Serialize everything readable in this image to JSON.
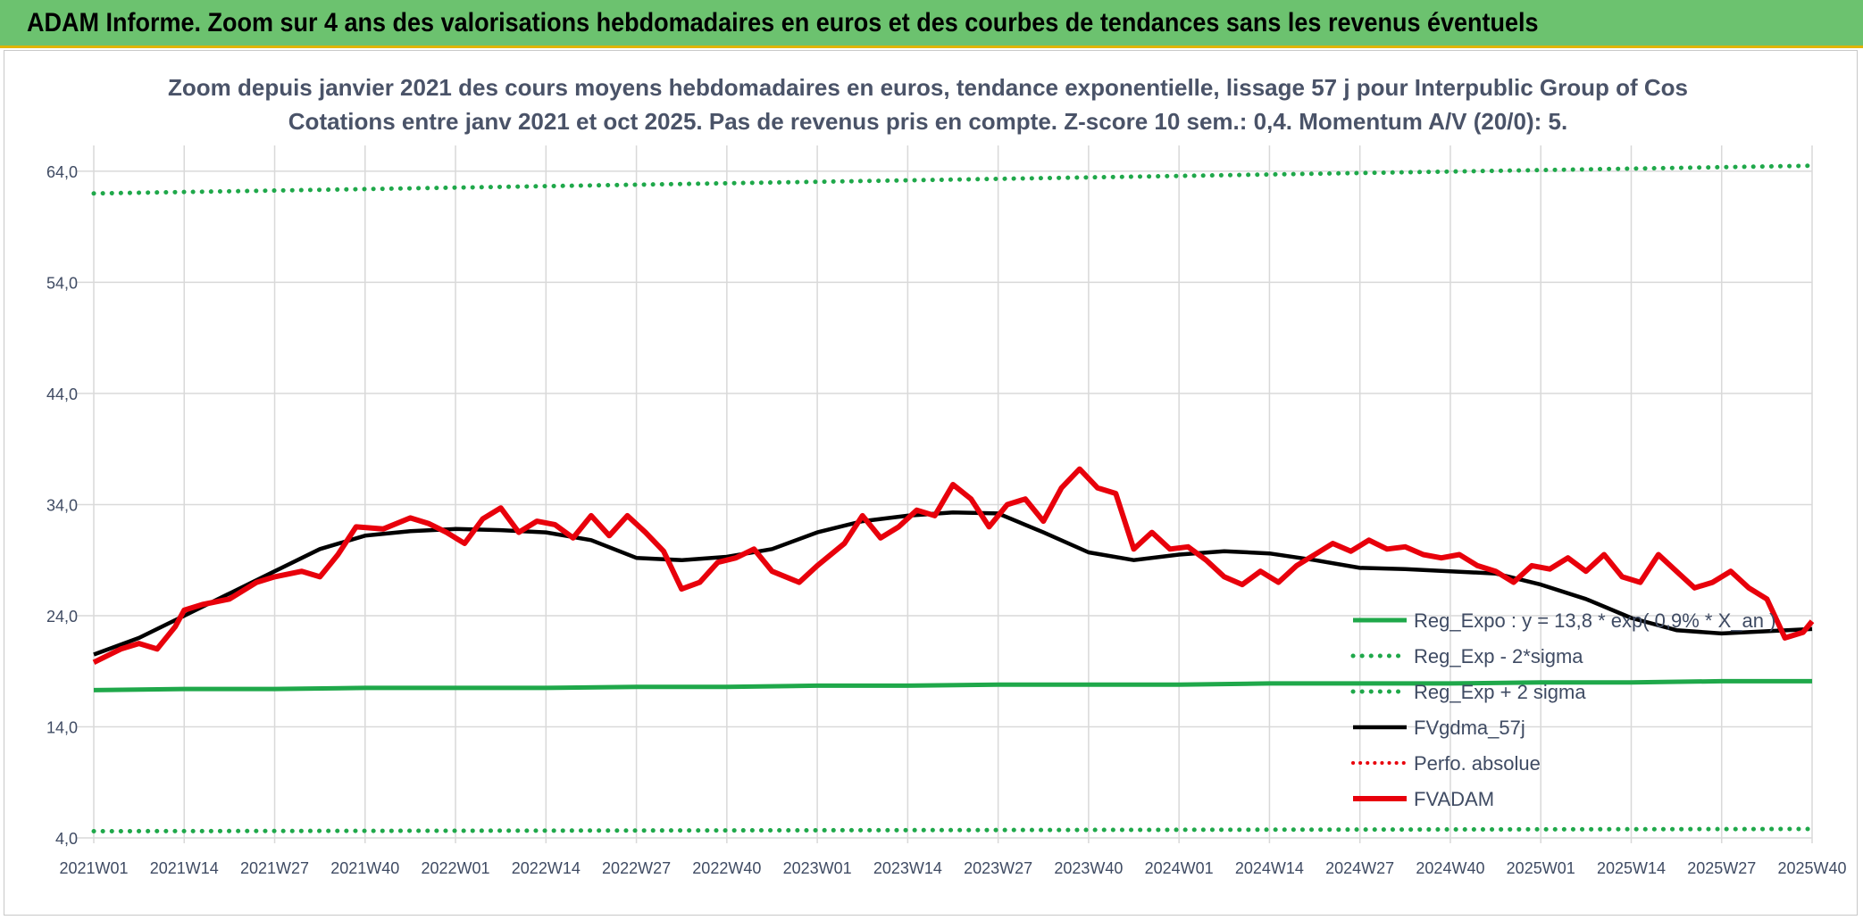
{
  "header": {
    "title": "ADAM Informe. Zoom sur 4 ans des valorisations hebdomadaires en euros et des courbes de tendances sans les revenus éventuels"
  },
  "colors": {
    "header_bg": "#6cc26f",
    "reg_expo": "#1fa84a",
    "red": "#e8000b",
    "black": "#000000",
    "grid": "#d9d9d9"
  },
  "chart_data": {
    "type": "line",
    "title": "Zoom depuis janvier 2021 des cours moyens hebdomadaires en euros, tendance exponentielle, lissage 57 j pour Interpublic Group of Cos",
    "subtitle": "Cotations entre janv 2021 et oct 2025. Pas de revenus pris en compte. Z-score 10 sem.: 0,4. Momentum A/V (20/0): 5.",
    "xlabel": "",
    "ylabel": "",
    "ylim": [
      4,
      66
    ],
    "yticks": [
      4,
      14,
      24,
      34,
      44,
      54,
      64
    ],
    "ytick_labels": [
      "4,0",
      "14,0",
      "24,0",
      "34,0",
      "44,0",
      "54,0",
      "64,0"
    ],
    "x_categories": [
      "2021W01",
      "2021W14",
      "2021W27",
      "2021W40",
      "2022W01",
      "2022W14",
      "2022W27",
      "2022W40",
      "2023W01",
      "2023W14",
      "2023W27",
      "2023W40",
      "2024W01",
      "2024W14",
      "2024W27",
      "2024W40",
      "2025W01",
      "2025W14",
      "2025W27",
      "2025W40"
    ],
    "grid": true,
    "legend_position": "bottom-right",
    "series": [
      {
        "name": "Reg_Expo : y = 13,8 * exp( 0,9% *  X_an )",
        "style": "solid",
        "values": [
          [
            0,
            17.3
          ],
          [
            1,
            17.4
          ],
          [
            2,
            17.4
          ],
          [
            3,
            17.5
          ],
          [
            4,
            17.5
          ],
          [
            5,
            17.5
          ],
          [
            6,
            17.6
          ],
          [
            7,
            17.6
          ],
          [
            8,
            17.7
          ],
          [
            9,
            17.7
          ],
          [
            10,
            17.8
          ],
          [
            11,
            17.8
          ],
          [
            12,
            17.8
          ],
          [
            13,
            17.9
          ],
          [
            14,
            17.9
          ],
          [
            15,
            17.9
          ],
          [
            16,
            18.0
          ],
          [
            17,
            18.0
          ],
          [
            18,
            18.1
          ],
          [
            19,
            18.1
          ]
        ]
      },
      {
        "name": "Reg_Exp - 2*sigma",
        "style": "dotted",
        "values": [
          [
            0,
            4.6
          ],
          [
            19,
            4.8
          ]
        ]
      },
      {
        "name": "Reg_Exp + 2 sigma",
        "style": "dotted",
        "values": [
          [
            0,
            62.0
          ],
          [
            19,
            64.5
          ]
        ]
      },
      {
        "name": "FVgdma_57j",
        "style": "solid",
        "values": [
          [
            0,
            20.5
          ],
          [
            0.5,
            22.0
          ],
          [
            1,
            24.0
          ],
          [
            1.5,
            26.0
          ],
          [
            2,
            28.0
          ],
          [
            2.5,
            30.0
          ],
          [
            3,
            31.2
          ],
          [
            3.5,
            31.6
          ],
          [
            4,
            31.8
          ],
          [
            4.5,
            31.7
          ],
          [
            5,
            31.5
          ],
          [
            5.5,
            30.8
          ],
          [
            6,
            29.2
          ],
          [
            6.5,
            29.0
          ],
          [
            7,
            29.3
          ],
          [
            7.5,
            30.0
          ],
          [
            8,
            31.5
          ],
          [
            8.5,
            32.5
          ],
          [
            9,
            33.0
          ],
          [
            9.5,
            33.3
          ],
          [
            10,
            33.2
          ],
          [
            10.5,
            31.5
          ],
          [
            11,
            29.7
          ],
          [
            11.5,
            29.0
          ],
          [
            12,
            29.5
          ],
          [
            12.5,
            29.8
          ],
          [
            13,
            29.6
          ],
          [
            13.5,
            29.0
          ],
          [
            14,
            28.3
          ],
          [
            14.5,
            28.2
          ],
          [
            15,
            28.0
          ],
          [
            15.5,
            27.8
          ],
          [
            16,
            26.8
          ],
          [
            16.5,
            25.5
          ],
          [
            17,
            23.8
          ],
          [
            17.5,
            22.7
          ],
          [
            18,
            22.4
          ],
          [
            18.5,
            22.6
          ],
          [
            19,
            22.8
          ]
        ]
      },
      {
        "name": "Perfo. absolue",
        "style": "dotted",
        "values": []
      },
      {
        "name": "FVADAM",
        "style": "solid",
        "values": [
          [
            0,
            19.8
          ],
          [
            0.3,
            21.0
          ],
          [
            0.5,
            21.5
          ],
          [
            0.7,
            21.0
          ],
          [
            0.9,
            23.0
          ],
          [
            1,
            24.5
          ],
          [
            1.2,
            25.0
          ],
          [
            1.5,
            25.5
          ],
          [
            1.8,
            27.0
          ],
          [
            2,
            27.5
          ],
          [
            2.3,
            28.0
          ],
          [
            2.5,
            27.5
          ],
          [
            2.7,
            29.5
          ],
          [
            2.9,
            32.0
          ],
          [
            3.2,
            31.8
          ],
          [
            3.5,
            32.8
          ],
          [
            3.7,
            32.3
          ],
          [
            3.9,
            31.5
          ],
          [
            4.1,
            30.5
          ],
          [
            4.3,
            32.7
          ],
          [
            4.5,
            33.7
          ],
          [
            4.7,
            31.5
          ],
          [
            4.9,
            32.5
          ],
          [
            5.1,
            32.2
          ],
          [
            5.3,
            31.0
          ],
          [
            5.5,
            33.0
          ],
          [
            5.7,
            31.2
          ],
          [
            5.9,
            33.0
          ],
          [
            6.1,
            31.5
          ],
          [
            6.3,
            29.8
          ],
          [
            6.5,
            26.4
          ],
          [
            6.7,
            27.0
          ],
          [
            6.9,
            28.8
          ],
          [
            7.1,
            29.2
          ],
          [
            7.3,
            30.0
          ],
          [
            7.5,
            28.0
          ],
          [
            7.8,
            27.0
          ],
          [
            8,
            28.5
          ],
          [
            8.3,
            30.5
          ],
          [
            8.5,
            33.0
          ],
          [
            8.7,
            31.0
          ],
          [
            8.9,
            32.0
          ],
          [
            9.1,
            33.5
          ],
          [
            9.3,
            33.0
          ],
          [
            9.5,
            35.8
          ],
          [
            9.7,
            34.5
          ],
          [
            9.9,
            32.0
          ],
          [
            10.1,
            34.0
          ],
          [
            10.3,
            34.5
          ],
          [
            10.5,
            32.5
          ],
          [
            10.7,
            35.5
          ],
          [
            10.9,
            37.2
          ],
          [
            11.1,
            35.5
          ],
          [
            11.3,
            35.0
          ],
          [
            11.5,
            30.0
          ],
          [
            11.7,
            31.5
          ],
          [
            11.9,
            30.0
          ],
          [
            12.1,
            30.2
          ],
          [
            12.3,
            29.0
          ],
          [
            12.5,
            27.5
          ],
          [
            12.7,
            26.8
          ],
          [
            12.9,
            28.0
          ],
          [
            13.1,
            27.0
          ],
          [
            13.3,
            28.5
          ],
          [
            13.5,
            29.5
          ],
          [
            13.7,
            30.5
          ],
          [
            13.9,
            29.8
          ],
          [
            14.1,
            30.8
          ],
          [
            14.3,
            30.0
          ],
          [
            14.5,
            30.2
          ],
          [
            14.7,
            29.5
          ],
          [
            14.9,
            29.2
          ],
          [
            15.1,
            29.5
          ],
          [
            15.3,
            28.5
          ],
          [
            15.5,
            28.0
          ],
          [
            15.7,
            27.0
          ],
          [
            15.9,
            28.5
          ],
          [
            16.1,
            28.2
          ],
          [
            16.3,
            29.2
          ],
          [
            16.5,
            28.0
          ],
          [
            16.7,
            29.5
          ],
          [
            16.9,
            27.5
          ],
          [
            17.1,
            27.0
          ],
          [
            17.3,
            29.5
          ],
          [
            17.5,
            28.0
          ],
          [
            17.7,
            26.5
          ],
          [
            17.9,
            27.0
          ],
          [
            18.1,
            28.0
          ],
          [
            18.3,
            26.5
          ],
          [
            18.5,
            25.5
          ],
          [
            18.7,
            22.0
          ],
          [
            18.9,
            22.5
          ],
          [
            19,
            23.5
          ]
        ]
      }
    ]
  }
}
